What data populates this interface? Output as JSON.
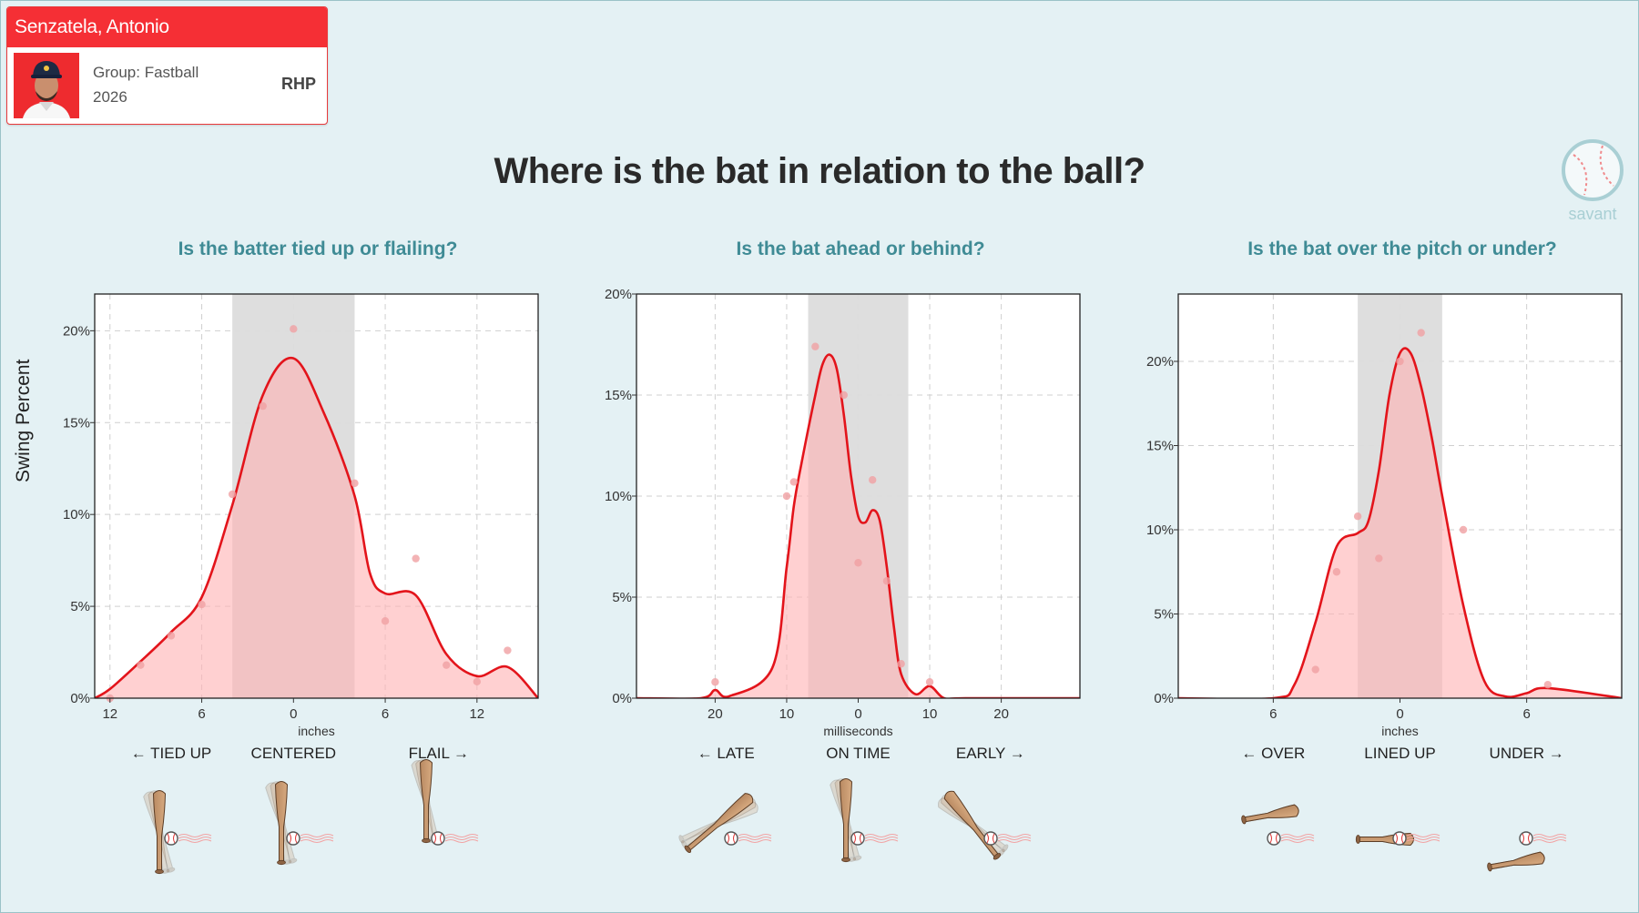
{
  "player": {
    "name": "Senzatela, Antonio",
    "group": "Group: Fastball",
    "year": "2026",
    "hand": "RHP"
  },
  "title": "Where is the bat in relation to the ball?",
  "logo_text": "savant",
  "y_axis_label": "Swing Percent",
  "colors": {
    "accent": "#f52f35",
    "curve": "#e3141b",
    "fill": "#ffb3b5",
    "band": "#dcdcdc",
    "subtitle": "#3f8b95",
    "background": "#e4f1f4"
  },
  "chart_data": [
    {
      "type": "area",
      "title": "Is the batter tied up or flailing?",
      "xlabel": "inches",
      "ylabel": "Swing Percent",
      "xlim": [
        13,
        -16
      ],
      "ylim": [
        0,
        22
      ],
      "x_ticks": [
        {
          "v": 12,
          "label": "12"
        },
        {
          "v": 6,
          "label": "6"
        },
        {
          "v": 0,
          "label": "0"
        },
        {
          "v": -6,
          "label": "6"
        },
        {
          "v": -12,
          "label": "12"
        }
      ],
      "y_ticks": [
        {
          "v": 0,
          "label": "0%"
        },
        {
          "v": 5,
          "label": "5%"
        },
        {
          "v": 10,
          "label": "10%"
        },
        {
          "v": 15,
          "label": "15%"
        },
        {
          "v": 20,
          "label": "20%"
        }
      ],
      "band": [
        4,
        -4
      ],
      "categories": [
        {
          "v": 8,
          "label": "← TIED UP"
        },
        {
          "v": 0,
          "label": "CENTERED"
        },
        {
          "v": -9.5,
          "label": "FLAIL →"
        }
      ],
      "curve": {
        "x": [
          13,
          12,
          10,
          8,
          6,
          4,
          2,
          0,
          -2,
          -4,
          -5,
          -6,
          -8,
          -10,
          -12,
          -14,
          -16
        ],
        "y": [
          0,
          0.5,
          2.0,
          3.6,
          5.5,
          10.5,
          16.5,
          18.5,
          15.5,
          11.0,
          6.8,
          5.7,
          5.6,
          2.4,
          1.2,
          1.7,
          0
        ]
      },
      "points": [
        {
          "x": 12,
          "y": 0
        },
        {
          "x": 10,
          "y": 1.8
        },
        {
          "x": 8,
          "y": 3.4
        },
        {
          "x": 6,
          "y": 5.1
        },
        {
          "x": 4,
          "y": 11.1
        },
        {
          "x": 2,
          "y": 15.9
        },
        {
          "x": 0,
          "y": 20.1
        },
        {
          "x": -4,
          "y": 11.7
        },
        {
          "x": -6,
          "y": 4.2
        },
        {
          "x": -8,
          "y": 7.6
        },
        {
          "x": -10,
          "y": 1.8
        },
        {
          "x": -12,
          "y": 0.9
        },
        {
          "x": -14,
          "y": 2.6
        }
      ]
    },
    {
      "type": "area",
      "title": "Is the bat ahead or behind?",
      "xlabel": "milliseconds",
      "ylabel": "",
      "xlim": [
        31,
        -31
      ],
      "ylim": [
        0,
        20
      ],
      "x_ticks": [
        {
          "v": 20,
          "label": "20"
        },
        {
          "v": 10,
          "label": "10"
        },
        {
          "v": 0,
          "label": "0"
        },
        {
          "v": -10,
          "label": "10"
        },
        {
          "v": -20,
          "label": "20"
        }
      ],
      "y_ticks": [
        {
          "v": 0,
          "label": "0%"
        },
        {
          "v": 5,
          "label": "5%"
        },
        {
          "v": 10,
          "label": "10%"
        },
        {
          "v": 15,
          "label": "15%"
        },
        {
          "v": 20,
          "label": "20%"
        }
      ],
      "band": [
        7,
        -7
      ],
      "categories": [
        {
          "v": 18.5,
          "label": "← LATE"
        },
        {
          "v": 0,
          "label": "ON TIME"
        },
        {
          "v": -18.5,
          "label": "EARLY →"
        }
      ],
      "curve": {
        "x": [
          31,
          22,
          20,
          18,
          12,
          10,
          9,
          8,
          6,
          5,
          4,
          3,
          2,
          1,
          0,
          -1,
          -2,
          -3,
          -4,
          -5,
          -6,
          -8,
          -10,
          -12,
          -15,
          -31
        ],
        "y": [
          0,
          0,
          0.4,
          0.1,
          1.5,
          6.5,
          9.5,
          11.5,
          15.0,
          16.5,
          17.0,
          16.3,
          14.0,
          11.0,
          9.0,
          8.7,
          9.3,
          8.8,
          6.5,
          3.5,
          1.2,
          0.2,
          0.6,
          0,
          0,
          0
        ]
      },
      "points": [
        {
          "x": 20,
          "y": 0.8
        },
        {
          "x": 10,
          "y": 10.0
        },
        {
          "x": 9,
          "y": 10.7
        },
        {
          "x": 6,
          "y": 17.4
        },
        {
          "x": 2,
          "y": 15.0
        },
        {
          "x": 0,
          "y": 6.7
        },
        {
          "x": -2,
          "y": 10.8
        },
        {
          "x": -4,
          "y": 5.8
        },
        {
          "x": -6,
          "y": 1.7
        },
        {
          "x": -10,
          "y": 0.8
        }
      ]
    },
    {
      "type": "area",
      "title": "Is the bat over the pitch or under?",
      "xlabel": "inches",
      "ylabel": "",
      "xlim": [
        10.5,
        -10.5
      ],
      "ylim": [
        0,
        24
      ],
      "x_ticks": [
        {
          "v": 6,
          "label": "6"
        },
        {
          "v": 0,
          "label": "0"
        },
        {
          "v": -6,
          "label": "6"
        }
      ],
      "y_ticks": [
        {
          "v": 0,
          "label": "0%"
        },
        {
          "v": 5,
          "label": "5%"
        },
        {
          "v": 10,
          "label": "10%"
        },
        {
          "v": 15,
          "label": "15%"
        },
        {
          "v": 20,
          "label": "20%"
        }
      ],
      "band": [
        2,
        -2
      ],
      "categories": [
        {
          "v": 6,
          "label": "← OVER"
        },
        {
          "v": 0,
          "label": "LINED UP"
        },
        {
          "v": -6,
          "label": "UNDER →"
        }
      ],
      "curve": {
        "x": [
          10.5,
          6,
          5,
          4,
          3,
          2,
          1.5,
          1,
          0.5,
          0,
          -0.5,
          -1,
          -1.5,
          -2,
          -3,
          -4,
          -5,
          -6,
          -7,
          -10.5
        ],
        "y": [
          0,
          0,
          0.8,
          4.5,
          9.0,
          9.8,
          10.5,
          13.5,
          18.0,
          20.5,
          20.5,
          18.5,
          15.5,
          12.0,
          5.5,
          1.0,
          0.1,
          0.3,
          0.6,
          0
        ]
      },
      "points": [
        {
          "x": 4,
          "y": 1.7
        },
        {
          "x": 3,
          "y": 7.5
        },
        {
          "x": 2,
          "y": 10.8
        },
        {
          "x": 1,
          "y": 8.3
        },
        {
          "x": 0,
          "y": 20.0
        },
        {
          "x": -1,
          "y": 21.7
        },
        {
          "x": -3,
          "y": 10.0
        },
        {
          "x": -7,
          "y": 0.8
        }
      ]
    }
  ]
}
